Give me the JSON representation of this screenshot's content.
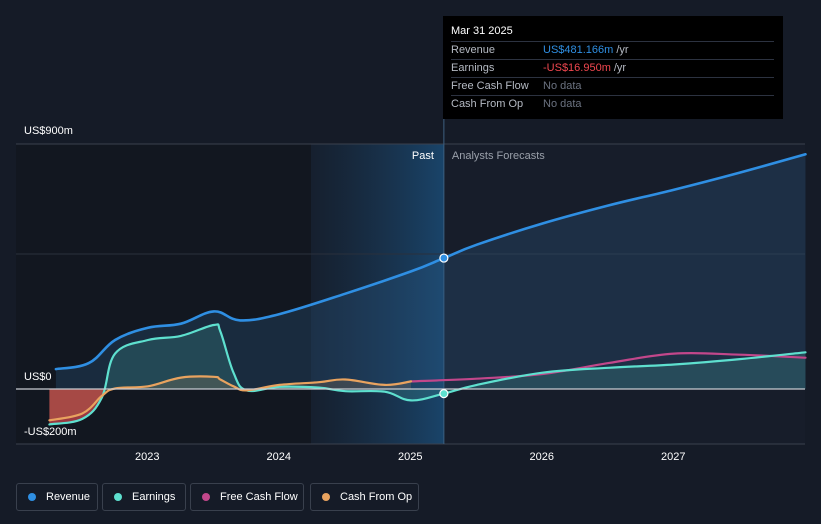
{
  "tooltip": {
    "date": "Mar 31 2025",
    "rows": [
      {
        "label": "Revenue",
        "value": "US$481.166m",
        "unit": "/yr",
        "color": "#2f8fe3"
      },
      {
        "label": "Earnings",
        "value": "-US$16.950m",
        "unit": "/yr",
        "color": "#f0474f"
      },
      {
        "label": "Free Cash Flow",
        "value": "No data",
        "unit": "",
        "color": "#6b7280"
      },
      {
        "label": "Cash From Op",
        "value": "No data",
        "unit": "",
        "color": "#6b7280"
      }
    ]
  },
  "sections": {
    "past": "Past",
    "forecast": "Analysts Forecasts"
  },
  "legend": [
    {
      "label": "Revenue",
      "color": "#2f8fe3"
    },
    {
      "label": "Earnings",
      "color": "#5ee0cf"
    },
    {
      "label": "Free Cash Flow",
      "color": "#c2478b"
    },
    {
      "label": "Cash From Op",
      "color": "#e9a35f"
    }
  ],
  "chart_data": {
    "type": "line",
    "title": "",
    "xlabel": "",
    "ylabel": "",
    "ylim": [
      -200,
      900
    ],
    "y_tick_labels": [
      "US$900m",
      "US$0",
      "-US$200m"
    ],
    "x_tick_labels": [
      "2023",
      "2024",
      "2025",
      "2026",
      "2027"
    ],
    "past_end": 2025.25,
    "series": [
      {
        "name": "Revenue",
        "color": "#2f8fe3",
        "fill": "area-to-zero",
        "x": [
          2022.3,
          2022.55,
          2022.75,
          2023.0,
          2023.25,
          2023.5,
          2023.7,
          2024.0,
          2024.5,
          2025.0,
          2025.25,
          2025.5,
          2026.0,
          2026.5,
          2027.0,
          2027.5,
          2028.0
        ],
        "values": [
          73,
          95,
          180,
          225,
          240,
          285,
          252,
          275,
          350,
          432,
          481,
          530,
          608,
          674,
          732,
          795,
          862
        ]
      },
      {
        "name": "Earnings",
        "color": "#5ee0cf",
        "fill": "area-to-zero",
        "x": [
          2022.25,
          2022.5,
          2022.65,
          2022.75,
          2023.0,
          2023.25,
          2023.5,
          2023.55,
          2023.65,
          2023.75,
          2024.0,
          2024.3,
          2024.5,
          2024.8,
          2025.0,
          2025.25,
          2025.5,
          2026.0,
          2026.5,
          2027.0,
          2027.5,
          2028.0
        ],
        "values": [
          -130,
          -110,
          -30,
          130,
          180,
          195,
          235,
          212,
          60,
          -5,
          8,
          5,
          -8,
          -10,
          -42,
          -17,
          15,
          60,
          78,
          90,
          110,
          135
        ]
      },
      {
        "name": "Free Cash Flow",
        "color": "#c2478b",
        "fill": "none",
        "x": [
          2025.0,
          2025.5,
          2026.0,
          2026.5,
          2027.0,
          2027.5,
          2028.0
        ],
        "values": [
          28,
          38,
          55,
          95,
          130,
          126,
          115
        ]
      },
      {
        "name": "Cash From Op",
        "color": "#e9a35f",
        "fill": "area-to-zero",
        "x": [
          2022.25,
          2022.5,
          2022.65,
          2022.75,
          2023.0,
          2023.25,
          2023.5,
          2023.55,
          2023.65,
          2023.75,
          2024.0,
          2024.3,
          2024.5,
          2024.8,
          2025.0
        ],
        "values": [
          -115,
          -90,
          -25,
          2,
          10,
          42,
          45,
          35,
          10,
          -5,
          15,
          25,
          35,
          15,
          28
        ]
      }
    ],
    "markers": [
      {
        "series": "Revenue",
        "x": 2025.25,
        "value": 481
      },
      {
        "series": "Earnings",
        "x": 2025.25,
        "value": -17
      }
    ]
  }
}
